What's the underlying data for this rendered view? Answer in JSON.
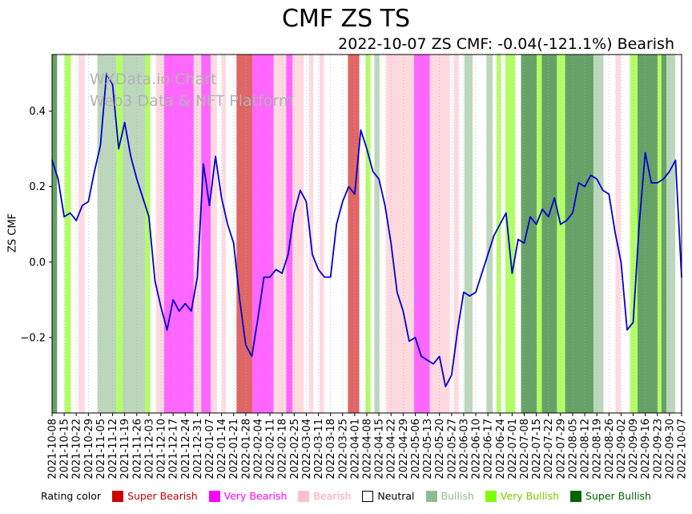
{
  "watermark": {
    "line1": "WXData.io Chart",
    "line2": "Web3 Data & NFT Platform"
  },
  "legend": {
    "prefix": "Rating color",
    "items": [
      {
        "label": "Super Bearish",
        "color": "#cc0000",
        "text_color": "#cc0000"
      },
      {
        "label": "Very Bearish",
        "color": "#ff00ff",
        "text_color": "#ff00ff"
      },
      {
        "label": "Bearish",
        "color": "#ffc0cb",
        "text_color": "#ff9eae"
      },
      {
        "label": "Neutral",
        "color": "#ffffff",
        "text_color": "#000000"
      },
      {
        "label": "Bullish",
        "color": "#8fbc8f",
        "text_color": "#8fbc8f"
      },
      {
        "label": "Very Bullish",
        "color": "#7fff00",
        "text_color": "#7ccd00"
      },
      {
        "label": "Super Bullish",
        "color": "#006400",
        "text_color": "#006400"
      }
    ]
  },
  "chart_data": {
    "type": "line",
    "title": "CMF ZS TS",
    "subtitle": "2022-10-07 ZS CMF: -0.04(-121.1%) Bearish",
    "ylabel": "ZS CMF",
    "xlabel": "",
    "series_name": "ZS CMF",
    "line_color": "#0000cd",
    "ylim": [
      -0.4,
      0.55
    ],
    "yticks": [
      -0.2,
      0.0,
      0.2,
      0.4
    ],
    "grid": {
      "vertical": "dotted",
      "horizontal": false,
      "color": "#b0b0b0"
    },
    "latest": {
      "date": "2022-10-07",
      "value": -0.04,
      "change_percent": "-121.1%",
      "rating": "Bearish"
    },
    "x_tick_labels": [
      "2021-10-08",
      "2021-10-15",
      "2021-10-22",
      "2021-10-29",
      "2021-11-05",
      "2021-11-12",
      "2021-11-19",
      "2021-11-26",
      "2021-12-03",
      "2021-12-10",
      "2021-12-17",
      "2021-12-24",
      "2021-12-31",
      "2022-01-07",
      "2022-01-14",
      "2022-01-21",
      "2022-01-28",
      "2022-02-04",
      "2022-02-11",
      "2022-02-18",
      "2022-02-25",
      "2022-03-04",
      "2022-03-11",
      "2022-03-18",
      "2022-03-25",
      "2022-04-01",
      "2022-04-08",
      "2022-04-15",
      "2022-04-22",
      "2022-04-29",
      "2022-05-06",
      "2022-05-13",
      "2022-05-20",
      "2022-05-27",
      "2022-06-03",
      "2022-06-10",
      "2022-06-17",
      "2022-06-24",
      "2022-07-01",
      "2022-07-08",
      "2022-07-15",
      "2022-07-22",
      "2022-07-29",
      "2022-08-05",
      "2022-08-12",
      "2022-08-19",
      "2022-08-26",
      "2022-09-02",
      "2022-09-09",
      "2022-09-16",
      "2022-09-23",
      "2022-09-30",
      "2022-10-07"
    ],
    "values": [
      0.27,
      0.22,
      0.12,
      0.13,
      0.11,
      0.15,
      0.16,
      0.24,
      0.31,
      0.5,
      0.47,
      0.3,
      0.37,
      0.28,
      0.22,
      0.17,
      0.12,
      -0.05,
      -0.12,
      -0.18,
      -0.1,
      -0.13,
      -0.11,
      -0.13,
      -0.04,
      0.26,
      0.15,
      0.28,
      0.17,
      0.1,
      0.05,
      -0.1,
      -0.22,
      -0.25,
      -0.15,
      -0.04,
      -0.04,
      -0.02,
      -0.03,
      0.02,
      0.13,
      0.19,
      0.16,
      0.02,
      -0.02,
      -0.04,
      -0.04,
      0.1,
      0.16,
      0.2,
      0.18,
      0.35,
      0.3,
      0.24,
      0.22,
      0.15,
      0.05,
      -0.08,
      -0.13,
      -0.21,
      -0.2,
      -0.25,
      -0.26,
      -0.27,
      -0.25,
      -0.33,
      -0.3,
      -0.18,
      -0.08,
      -0.09,
      -0.08,
      -0.03,
      0.02,
      0.07,
      0.1,
      0.13,
      -0.03,
      0.06,
      0.05,
      0.12,
      0.1,
      0.14,
      0.12,
      0.17,
      0.1,
      0.11,
      0.13,
      0.21,
      0.2,
      0.23,
      0.22,
      0.19,
      0.18,
      0.08,
      0.0,
      -0.18,
      -0.16,
      0.1,
      0.29,
      0.21,
      0.21,
      0.22,
      0.24,
      0.27,
      -0.04
    ],
    "rating_colors": {
      "Super Bearish": "#cc0000",
      "Very Bearish": "#ff00ff",
      "Bearish": "#ffc0cb",
      "Neutral": "#ffffff",
      "Bullish": "#8fbc8f",
      "Very Bullish": "#7fff00",
      "Super Bullish": "#006400"
    },
    "band_opacity": 0.6,
    "background_bands": [
      {
        "from": 0.0,
        "to": 0.008,
        "rating": "Super Bullish"
      },
      {
        "from": 0.02,
        "to": 0.03,
        "rating": "Very Bullish"
      },
      {
        "from": 0.042,
        "to": 0.052,
        "rating": "Bearish"
      },
      {
        "from": 0.072,
        "to": 0.102,
        "rating": "Bullish"
      },
      {
        "from": 0.102,
        "to": 0.112,
        "rating": "Very Bullish"
      },
      {
        "from": 0.112,
        "to": 0.148,
        "rating": "Bullish"
      },
      {
        "from": 0.148,
        "to": 0.156,
        "rating": "Very Bullish"
      },
      {
        "from": 0.165,
        "to": 0.178,
        "rating": "Bearish"
      },
      {
        "from": 0.178,
        "to": 0.225,
        "rating": "Very Bearish"
      },
      {
        "from": 0.225,
        "to": 0.237,
        "rating": "Bearish"
      },
      {
        "from": 0.237,
        "to": 0.252,
        "rating": "Very Bearish"
      },
      {
        "from": 0.252,
        "to": 0.262,
        "rating": "Bearish"
      },
      {
        "from": 0.27,
        "to": 0.276,
        "rating": "Bearish"
      },
      {
        "from": 0.293,
        "to": 0.318,
        "rating": "Super Bearish"
      },
      {
        "from": 0.318,
        "to": 0.352,
        "rating": "Very Bearish"
      },
      {
        "from": 0.352,
        "to": 0.372,
        "rating": "Bearish"
      },
      {
        "from": 0.372,
        "to": 0.382,
        "rating": "Very Bearish"
      },
      {
        "from": 0.382,
        "to": 0.4,
        "rating": "Bearish"
      },
      {
        "from": 0.408,
        "to": 0.415,
        "rating": "Bearish"
      },
      {
        "from": 0.425,
        "to": 0.432,
        "rating": "Bearish"
      },
      {
        "from": 0.47,
        "to": 0.488,
        "rating": "Super Bearish"
      },
      {
        "from": 0.498,
        "to": 0.506,
        "rating": "Very Bullish"
      },
      {
        "from": 0.512,
        "to": 0.52,
        "rating": "Bullish"
      },
      {
        "from": 0.53,
        "to": 0.575,
        "rating": "Bearish"
      },
      {
        "from": 0.575,
        "to": 0.6,
        "rating": "Very Bearish"
      },
      {
        "from": 0.6,
        "to": 0.632,
        "rating": "Bearish"
      },
      {
        "from": 0.638,
        "to": 0.646,
        "rating": "Bearish"
      },
      {
        "from": 0.655,
        "to": 0.668,
        "rating": "Bullish"
      },
      {
        "from": 0.69,
        "to": 0.7,
        "rating": "Bullish"
      },
      {
        "from": 0.706,
        "to": 0.713,
        "rating": "Very Bullish"
      },
      {
        "from": 0.72,
        "to": 0.736,
        "rating": "Very Bullish"
      },
      {
        "from": 0.745,
        "to": 0.77,
        "rating": "Super Bullish"
      },
      {
        "from": 0.77,
        "to": 0.778,
        "rating": "Very Bullish"
      },
      {
        "from": 0.778,
        "to": 0.802,
        "rating": "Super Bullish"
      },
      {
        "from": 0.802,
        "to": 0.815,
        "rating": "Very Bullish"
      },
      {
        "from": 0.815,
        "to": 0.86,
        "rating": "Super Bullish"
      },
      {
        "from": 0.86,
        "to": 0.876,
        "rating": "Bullish"
      },
      {
        "from": 0.895,
        "to": 0.903,
        "rating": "Bearish"
      },
      {
        "from": 0.918,
        "to": 0.93,
        "rating": "Very Bullish"
      },
      {
        "from": 0.93,
        "to": 0.962,
        "rating": "Super Bullish"
      },
      {
        "from": 0.962,
        "to": 0.968,
        "rating": "Very Bullish"
      },
      {
        "from": 0.968,
        "to": 0.976,
        "rating": "Super Bullish"
      },
      {
        "from": 0.976,
        "to": 0.99,
        "rating": "Bullish"
      }
    ]
  }
}
